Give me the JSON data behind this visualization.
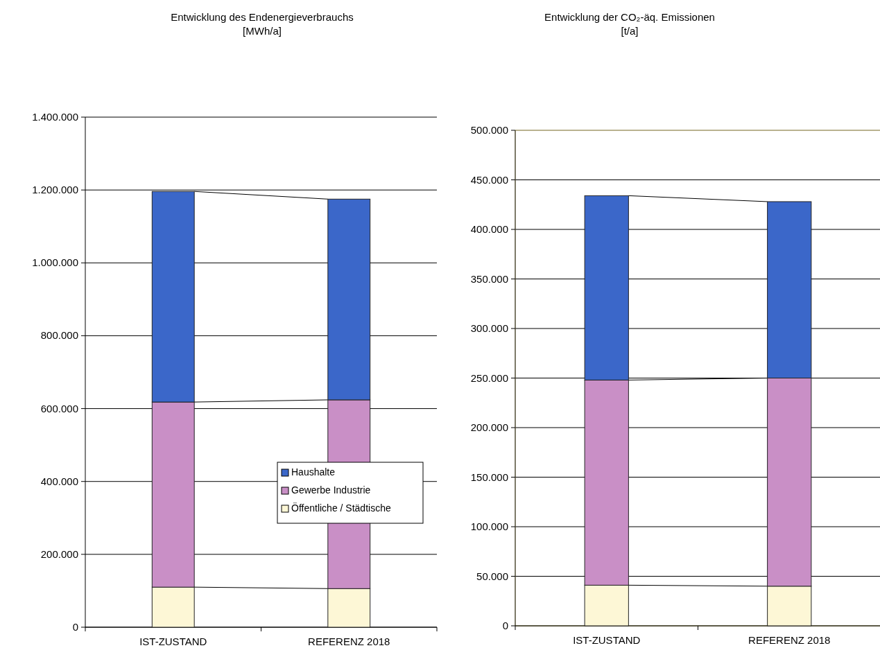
{
  "chart_data": [
    {
      "type": "bar",
      "title": "Entwicklung des Endenergieverbrauchs",
      "subtitle": "[MWh/a]",
      "categories": [
        "IST-ZUSTAND",
        "REFERENZ 2018"
      ],
      "stacked": true,
      "series": [
        {
          "name": "Öffentliche / Städtische",
          "color": "#fdf7d6",
          "values": [
            110000,
            106000
          ]
        },
        {
          "name": "Gewerbe Industrie",
          "color": "#c98fc6",
          "values": [
            508000,
            518000
          ]
        },
        {
          "name": "Haushalte",
          "color": "#3b67c9",
          "values": [
            578000,
            551000
          ]
        }
      ],
      "ylim": [
        0,
        1400000
      ],
      "yticks": [
        0,
        {
          "value": 200000,
          "label": "200.000"
        },
        {
          "value": 400000,
          "label": "400.000"
        },
        {
          "value": 600000,
          "label": "600.000"
        },
        {
          "value": 800000,
          "label": "800.000"
        },
        {
          "value": 1000000,
          "label": "1.000.000"
        },
        {
          "value": 1200000,
          "label": "1.200.000"
        },
        {
          "value": 1400000,
          "label": "1.400.000"
        }
      ],
      "grid": "y",
      "legend": "bottom right"
    },
    {
      "type": "bar",
      "title": "Entwicklung der CO₂-äq. Emissionen",
      "subtitle": "[t/a]",
      "categories": [
        "IST-ZUSTAND",
        "REFERENZ 2018"
      ],
      "stacked": true,
      "series": [
        {
          "color": "#fdf7d6",
          "values": [
            41000,
            40000
          ]
        },
        {
          "color": "#c98fc6",
          "values": [
            207000,
            210000
          ]
        },
        {
          "color": "#3b67c9",
          "values": [
            186000,
            178000
          ]
        }
      ],
      "ylim": [
        0,
        500000
      ],
      "yticks": [
        0,
        {
          "value": 50000,
          "label": "50.000"
        },
        {
          "value": 100000,
          "label": "100.000"
        },
        {
          "value": 150000,
          "label": "150.000"
        },
        {
          "value": 200000,
          "label": "200.000"
        },
        {
          "value": 250000,
          "label": "250.000"
        },
        {
          "value": 300000,
          "label": "300.000"
        },
        {
          "value": 350000,
          "label": "350.000"
        },
        {
          "value": 400000,
          "label": "400.000"
        },
        {
          "value": 450000,
          "label": "450.000"
        },
        {
          "value": 500000,
          "label": "500.000"
        }
      ],
      "grid": "y",
      "legend": false
    }
  ]
}
